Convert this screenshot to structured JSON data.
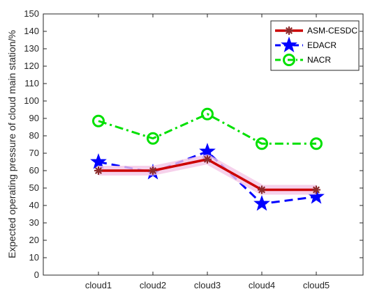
{
  "chart_data": {
    "type": "line",
    "categories": [
      "cloud1",
      "cloud2",
      "cloud3",
      "cloud4",
      "cloud5"
    ],
    "ylabel": "Expected operating pressure of cloud main station/%",
    "xlabel": "",
    "ylim": [
      0,
      150
    ],
    "yticks": [
      0,
      10,
      20,
      30,
      40,
      50,
      60,
      70,
      80,
      90,
      100,
      110,
      120,
      130,
      140,
      150
    ],
    "grid": false,
    "legend_position": "top-right",
    "series": [
      {
        "name": "ASM-CESDC",
        "values": [
          60,
          60,
          66.5,
          49,
          49
        ],
        "color": "#cc0000",
        "marker": "asterisk",
        "line": "solid"
      },
      {
        "name": "EDACR",
        "values": [
          65,
          59,
          71,
          41,
          45
        ],
        "color": "#0000ff",
        "marker": "star",
        "line": "dashed"
      },
      {
        "name": "NACR",
        "values": [
          88.5,
          78.5,
          92.5,
          75.5,
          75.5
        ],
        "color": "#00e000",
        "marker": "circle",
        "line": "dashdot"
      }
    ]
  }
}
